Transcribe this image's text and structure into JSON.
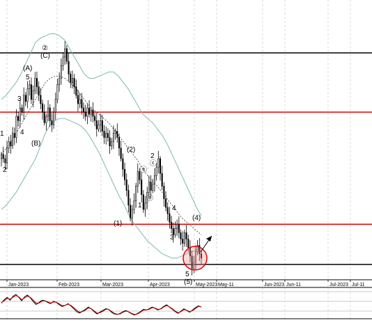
{
  "chart_data": {
    "type": "candlestick",
    "x_axis": {
      "tick_labels": [
        "Jan-2023",
        "Feb-2023",
        "Mar-2023",
        "Apr-2023",
        "May-2023",
        "May-11",
        "Jun-2023",
        "Jun-11",
        "Jul-2023",
        "Jul-11"
      ]
    },
    "levels": {
      "black": [
        1.0,
        0.0
      ],
      "red": [
        0.72,
        0.19
      ]
    },
    "price_series": {
      "name": "",
      "closes": [
        0.52,
        0.5,
        0.48,
        0.55,
        0.58,
        0.56,
        0.62,
        0.6,
        0.7,
        0.68,
        0.74,
        0.72,
        0.8,
        0.77,
        0.83,
        0.85,
        0.78,
        0.82,
        0.88,
        0.84,
        0.8,
        0.76,
        0.72,
        0.67,
        0.7,
        0.74,
        0.68,
        0.66,
        0.72,
        0.78,
        0.85,
        0.88,
        0.94,
        0.98,
        1.02,
        0.96,
        0.9,
        0.86,
        0.88,
        0.84,
        0.8,
        0.76,
        0.78,
        0.74,
        0.72,
        0.7,
        0.74,
        0.71,
        0.73,
        0.7,
        0.68,
        0.64,
        0.66,
        0.68,
        0.63,
        0.6,
        0.62,
        0.6,
        0.56,
        0.58,
        0.62,
        0.63,
        0.6,
        0.55,
        0.5,
        0.45,
        0.4,
        0.35,
        0.28,
        0.22,
        0.26,
        0.3,
        0.37,
        0.44,
        0.4,
        0.33,
        0.26,
        0.29,
        0.34,
        0.39,
        0.35,
        0.38,
        0.42,
        0.46,
        0.5,
        0.43,
        0.37,
        0.31,
        0.27,
        0.24,
        0.2,
        0.17,
        0.14,
        0.17,
        0.19,
        0.15,
        0.12,
        0.1,
        0.15,
        0.12,
        0.08,
        0.04,
        -0.02,
        0.01,
        0.06,
        0.09,
        0.05,
        0.03
      ],
      "bollinger": {
        "upper": [
          0.78,
          0.8,
          0.83,
          0.86,
          0.9,
          0.95,
          1.0,
          1.05,
          1.07,
          1.08,
          1.09,
          1.09,
          1.08,
          1.06,
          1.02,
          0.98,
          0.94,
          0.9,
          0.88,
          0.88,
          0.89,
          0.9,
          0.91,
          0.91,
          0.89,
          0.86,
          0.83,
          0.79,
          0.75,
          0.71,
          0.69,
          0.67,
          0.64,
          0.61,
          0.57,
          0.52,
          0.47,
          0.42,
          0.37,
          0.32,
          0.27,
          0.23
        ],
        "middle": [
          0.52,
          0.55,
          0.58,
          0.62,
          0.66,
          0.7,
          0.74,
          0.78,
          0.82,
          0.86,
          0.88,
          0.89,
          0.89,
          0.88,
          0.86,
          0.84,
          0.81,
          0.78,
          0.75,
          0.73,
          0.71,
          0.69,
          0.67,
          0.64,
          0.61,
          0.58,
          0.55,
          0.52,
          0.49,
          0.45,
          0.42,
          0.39,
          0.37,
          0.34,
          0.31,
          0.28,
          0.25,
          0.22,
          0.2,
          0.18,
          0.16,
          0.14
        ],
        "lower": [
          0.26,
          0.28,
          0.31,
          0.34,
          0.38,
          0.42,
          0.46,
          0.5,
          0.56,
          0.62,
          0.66,
          0.68,
          0.69,
          0.69,
          0.68,
          0.67,
          0.66,
          0.64,
          0.61,
          0.57,
          0.53,
          0.48,
          0.43,
          0.38,
          0.33,
          0.29,
          0.24,
          0.2,
          0.17,
          0.14,
          0.11,
          0.09,
          0.07,
          0.05,
          0.04,
          0.03,
          0.03,
          0.04,
          0.05,
          0.06,
          0.07,
          0.08
        ]
      }
    },
    "wave_labels": [
      "1",
      "2",
      "3",
      "4",
      "5",
      "(A)",
      "(B)",
      "②",
      "(C)",
      "(2)",
      "ⓐ",
      "ⓑ",
      "2",
      "ⓒ",
      "1",
      "(1)",
      "4",
      "3",
      "(4)",
      "5",
      "(5)"
    ],
    "oscillator": {
      "series": [
        {
          "name": "",
          "color": "#000000",
          "values": [
            50,
            62,
            70,
            60,
            74,
            80,
            70,
            58,
            72,
            78,
            68,
            55,
            45,
            52,
            60,
            58,
            52,
            48,
            56,
            52,
            44,
            38,
            42,
            48,
            40,
            30,
            20,
            15,
            22,
            28,
            36,
            30,
            20,
            12,
            18,
            24,
            30,
            28,
            18,
            12,
            10,
            14,
            20,
            24,
            18,
            12,
            8,
            14,
            20,
            28,
            26,
            30,
            36,
            32,
            26,
            30,
            38,
            44,
            36,
            28,
            20,
            14,
            22,
            30,
            24,
            18,
            26,
            34,
            40,
            36
          ]
        },
        {
          "name": "",
          "color": "#c00000",
          "values": [
            52,
            58,
            66,
            64,
            70,
            76,
            72,
            62,
            68,
            74,
            70,
            60,
            50,
            50,
            56,
            58,
            54,
            50,
            54,
            53,
            47,
            41,
            42,
            46,
            42,
            34,
            25,
            18,
            20,
            25,
            33,
            31,
            23,
            15,
            16,
            21,
            28,
            28,
            21,
            14,
            11,
            12,
            18,
            22,
            19,
            14,
            10,
            12,
            18,
            25,
            26,
            28,
            34,
            33,
            28,
            29,
            36,
            41,
            37,
            30,
            22,
            16,
            20,
            27,
            25,
            20,
            24,
            31,
            38,
            37
          ]
        }
      ]
    }
  }
}
